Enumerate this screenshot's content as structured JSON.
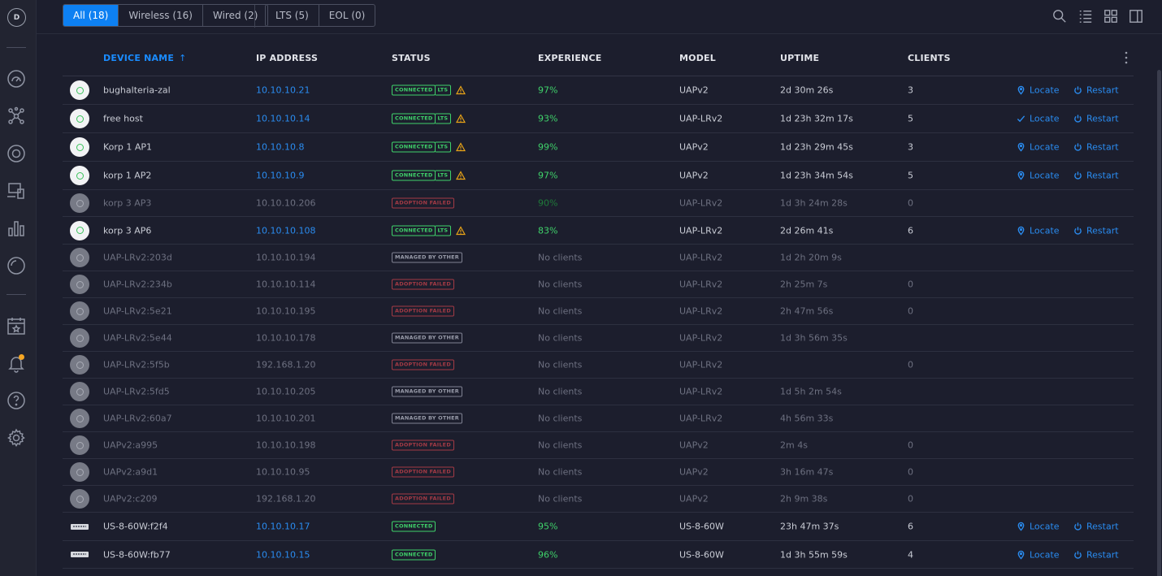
{
  "sidebar": {
    "avatar_letter": "D",
    "items": [
      {
        "name": "dashboard-icon"
      },
      {
        "name": "topology-icon"
      },
      {
        "name": "devices-icon"
      },
      {
        "name": "clients-icon"
      },
      {
        "name": "statistics-icon"
      },
      {
        "name": "insights-icon"
      },
      {
        "name": "events-icon"
      },
      {
        "name": "alerts-icon"
      },
      {
        "name": "help-icon"
      },
      {
        "name": "settings-icon"
      }
    ]
  },
  "topbar": {
    "filters": [
      "All (18)",
      "Wireless (16)",
      "Wired (2)"
    ],
    "filters2": [
      "LTS (5)",
      "EOL (0)"
    ]
  },
  "table": {
    "headers": {
      "name": "DEVICE NAME",
      "name_arrow": "↑",
      "ip": "IP ADDRESS",
      "status": "STATUS",
      "experience": "EXPERIENCE",
      "model": "MODEL",
      "uptime": "UPTIME",
      "clients": "CLIENTS"
    },
    "action_locate": "Locate",
    "action_restart": "Restart",
    "rows": [
      {
        "icon": "ap",
        "name": "bughalteria-zal",
        "ip": "10.10.10.21",
        "status": "CONNECTED",
        "lts": "LTS",
        "warn": true,
        "exp": "97%",
        "model": "UAPv2",
        "uptime": "2d 30m 26s",
        "clients": "3",
        "actions": true,
        "dim": false
      },
      {
        "icon": "ap",
        "name": "free host",
        "ip": "10.10.10.14",
        "status": "CONNECTED",
        "lts": "LTS",
        "warn": true,
        "exp": "93%",
        "model": "UAP-LRv2",
        "uptime": "1d 23h 32m 17s",
        "clients": "5",
        "actions": true,
        "locate_check": true,
        "dim": false
      },
      {
        "icon": "ap",
        "name": "Korp 1 AP1",
        "ip": "10.10.10.8",
        "status": "CONNECTED",
        "lts": "LTS",
        "warn": true,
        "exp": "99%",
        "model": "UAPv2",
        "uptime": "1d 23h 29m 45s",
        "clients": "3",
        "actions": true,
        "dim": false
      },
      {
        "icon": "ap",
        "name": "korp 1 AP2",
        "ip": "10.10.10.9",
        "status": "CONNECTED",
        "lts": "LTS",
        "warn": true,
        "exp": "97%",
        "model": "UAPv2",
        "uptime": "1d 23h 34m 54s",
        "clients": "5",
        "actions": true,
        "dim": false
      },
      {
        "icon": "ap-gray",
        "name": "korp 3 AP3",
        "ip": "10.10.10.206",
        "status": "ADOPTION FAILED",
        "exp": "90%",
        "model": "UAP-LRv2",
        "uptime": "1d 3h 24m 28s",
        "clients": "0",
        "actions": false,
        "dim": true
      },
      {
        "icon": "ap",
        "name": "korp 3 AP6",
        "ip": "10.10.10.108",
        "status": "CONNECTED",
        "lts": "LTS",
        "warn": true,
        "exp": "83%",
        "model": "UAP-LRv2",
        "uptime": "2d 26m 41s",
        "clients": "6",
        "actions": true,
        "dim": false
      },
      {
        "icon": "ap-gray",
        "name": "UAP-LRv2:203d",
        "ip": "10.10.10.194",
        "status": "MANAGED BY OTHER",
        "exp": "No clients",
        "model": "UAP-LRv2",
        "uptime": "1d 2h 20m 9s",
        "clients": "",
        "actions": false,
        "dim": true
      },
      {
        "icon": "ap-gray",
        "name": "UAP-LRv2:234b",
        "ip": "10.10.10.114",
        "status": "ADOPTION FAILED",
        "exp": "No clients",
        "model": "UAP-LRv2",
        "uptime": "2h 25m 7s",
        "clients": "0",
        "actions": false,
        "dim": true
      },
      {
        "icon": "ap-gray",
        "name": "UAP-LRv2:5e21",
        "ip": "10.10.10.195",
        "status": "ADOPTION FAILED",
        "exp": "No clients",
        "model": "UAP-LRv2",
        "uptime": "2h 47m 56s",
        "clients": "0",
        "actions": false,
        "dim": true
      },
      {
        "icon": "ap-gray",
        "name": "UAP-LRv2:5e44",
        "ip": "10.10.10.178",
        "status": "MANAGED BY OTHER",
        "exp": "No clients",
        "model": "UAP-LRv2",
        "uptime": "1d 3h 56m 35s",
        "clients": "",
        "actions": false,
        "dim": true
      },
      {
        "icon": "ap-gray",
        "name": "UAP-LRv2:5f5b",
        "ip": "192.168.1.20",
        "status": "ADOPTION FAILED",
        "exp": "No clients",
        "model": "UAP-LRv2",
        "uptime": "",
        "clients": "0",
        "actions": false,
        "dim": true
      },
      {
        "icon": "ap-gray",
        "name": "UAP-LRv2:5fd5",
        "ip": "10.10.10.205",
        "status": "MANAGED BY OTHER",
        "exp": "No clients",
        "model": "UAP-LRv2",
        "uptime": "1d 5h 2m 54s",
        "clients": "",
        "actions": false,
        "dim": true
      },
      {
        "icon": "ap-gray",
        "name": "UAP-LRv2:60a7",
        "ip": "10.10.10.201",
        "status": "MANAGED BY OTHER",
        "exp": "No clients",
        "model": "UAP-LRv2",
        "uptime": "4h 56m 33s",
        "clients": "",
        "actions": false,
        "dim": true
      },
      {
        "icon": "ap-gray",
        "name": "UAPv2:a995",
        "ip": "10.10.10.198",
        "status": "ADOPTION FAILED",
        "exp": "No clients",
        "model": "UAPv2",
        "uptime": "2m 4s",
        "clients": "0",
        "actions": false,
        "dim": true
      },
      {
        "icon": "ap-gray",
        "name": "UAPv2:a9d1",
        "ip": "10.10.10.95",
        "status": "ADOPTION FAILED",
        "exp": "No clients",
        "model": "UAPv2",
        "uptime": "3h 16m 47s",
        "clients": "0",
        "actions": false,
        "dim": true
      },
      {
        "icon": "ap-gray",
        "name": "UAPv2:c209",
        "ip": "192.168.1.20",
        "status": "ADOPTION FAILED",
        "exp": "No clients",
        "model": "UAPv2",
        "uptime": "2h 9m 38s",
        "clients": "0",
        "actions": false,
        "dim": true
      },
      {
        "icon": "switch",
        "name": "US-8-60W:f2f4",
        "ip": "10.10.10.17",
        "status": "CONNECTED",
        "exp": "95%",
        "model": "US-8-60W",
        "uptime": "23h 47m 37s",
        "clients": "6",
        "actions": true,
        "dim": false
      },
      {
        "icon": "switch",
        "name": "US-8-60W:fb77",
        "ip": "10.10.10.15",
        "status": "CONNECTED",
        "exp": "96%",
        "model": "US-8-60W",
        "uptime": "1d 3h 55m 59s",
        "clients": "4",
        "actions": true,
        "dim": false
      }
    ]
  }
}
